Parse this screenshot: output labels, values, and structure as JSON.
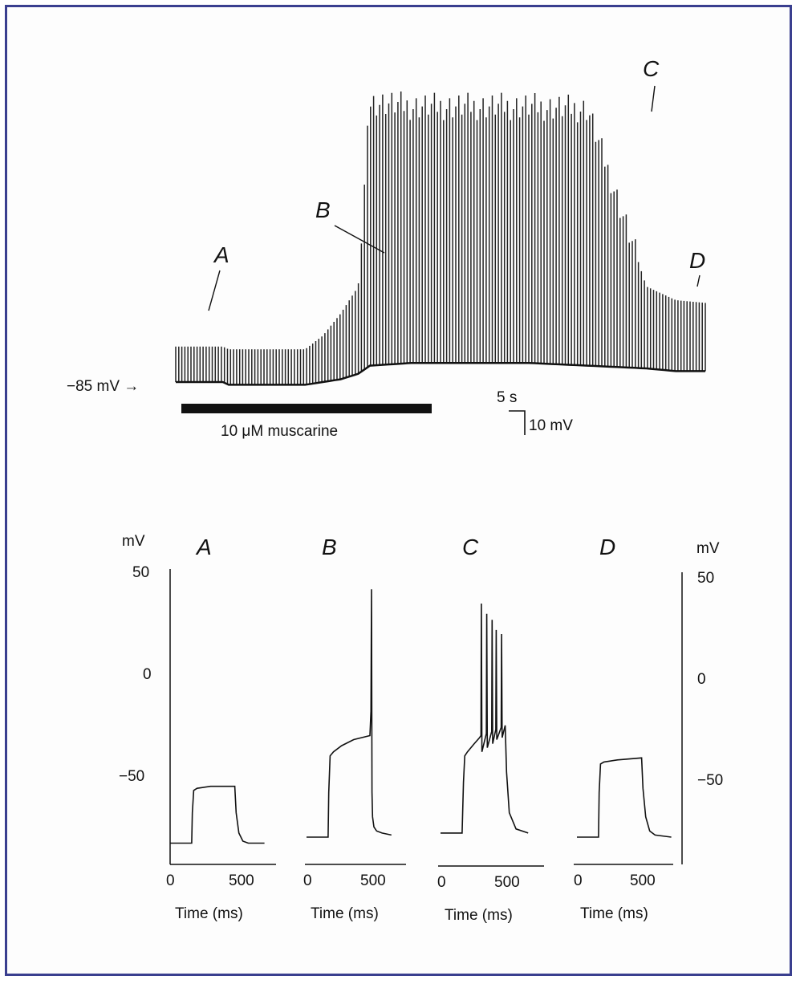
{
  "colors": {
    "frame": "#3a3f8f",
    "trace": "#111111",
    "drug_bar": "#111111"
  },
  "chart_data": [
    {
      "type": "line",
      "panel": "top",
      "resting_label": "−85 mV →",
      "drug_label": "10 μM muscarine",
      "scale_time": "5 s",
      "scale_voltage": "10 mV",
      "markers": [
        {
          "label": "A"
        },
        {
          "label": "B"
        },
        {
          "label": "C"
        },
        {
          "label": "D"
        }
      ],
      "envelope_t": [
        0,
        8,
        9,
        22,
        25,
        28,
        31,
        33,
        40,
        60,
        70,
        80,
        85,
        90
      ],
      "baseline_mv": [
        -85,
        -85,
        -86,
        -86,
        -85,
        -84,
        -82,
        -79,
        -78,
        -78,
        -79,
        -80,
        -81,
        -81
      ],
      "peak_mv": [
        -72,
        -72,
        -73,
        -73,
        -68,
        -60,
        -50,
        18,
        16,
        16,
        15,
        -50,
        -55,
        -56
      ]
    },
    {
      "type": "line",
      "title": "A",
      "xticks": [
        "0",
        "500"
      ],
      "xlabel": "Time (ms)",
      "ylabel": "mV",
      "yticks": [
        "50",
        "0",
        "−50"
      ],
      "ylim": [
        -90,
        50
      ],
      "xlim": [
        0,
        700
      ],
      "x": [
        0,
        160,
        165,
        175,
        200,
        300,
        480,
        490,
        510,
        540,
        580,
        700
      ],
      "y": [
        -85,
        -85,
        -70,
        -59,
        -58,
        -57,
        -57,
        -70,
        -80,
        -84,
        -85,
        -85
      ]
    },
    {
      "type": "line",
      "title": "B",
      "xticks": [
        "0",
        "500"
      ],
      "xlabel": "Time (ms)",
      "x": [
        0,
        160,
        165,
        175,
        200,
        260,
        350,
        470,
        478,
        482,
        486,
        490,
        500,
        520,
        560,
        630
      ],
      "y": [
        -82,
        -82,
        -60,
        -42,
        -40,
        -37,
        -34,
        -32,
        -20,
        40,
        -60,
        -72,
        -77,
        -79,
        -80,
        -81
      ]
    },
    {
      "type": "line",
      "title": "C",
      "xticks": [
        "0",
        "500"
      ],
      "xlabel": "Time (ms)",
      "x": [
        0,
        160,
        170,
        180,
        200,
        250,
        290,
        300,
        303,
        307,
        340,
        343,
        347,
        380,
        383,
        387,
        410,
        413,
        417,
        450,
        453,
        457,
        480,
        490,
        510,
        560,
        650
      ],
      "y": [
        -80,
        -80,
        -55,
        -42,
        -40,
        -36,
        -33,
        -32,
        33,
        -40,
        -31,
        28,
        -38,
        -30,
        25,
        -36,
        -29,
        20,
        -34,
        -28,
        18,
        -33,
        -27,
        -50,
        -70,
        -78,
        -80
      ],
      "spike_peaks_mv": [
        33,
        28,
        25,
        20,
        18
      ]
    },
    {
      "type": "line",
      "title": "D",
      "xticks": [
        "0",
        "500"
      ],
      "xlabel": "Time (ms)",
      "ylabel": "mV",
      "yticks": [
        "50",
        "0",
        "−50"
      ],
      "ylim": [
        -90,
        50
      ],
      "x": [
        0,
        160,
        165,
        175,
        200,
        300,
        480,
        490,
        510,
        540,
        580,
        700
      ],
      "y": [
        -82,
        -82,
        -60,
        -46,
        -45,
        -44,
        -43,
        -58,
        -72,
        -79,
        -81,
        -82
      ]
    }
  ]
}
